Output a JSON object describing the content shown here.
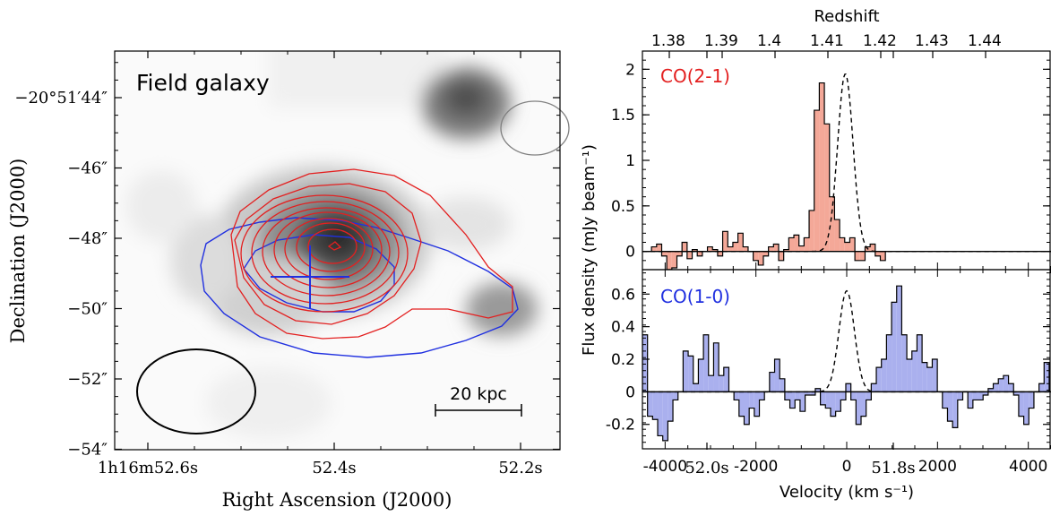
{
  "chart_data": [
    {
      "type": "image",
      "panel_title": "Field galaxy",
      "xlabel": "Right Ascension (J2000)",
      "ylabel": "Declination (J2000)",
      "x_ticks": [
        {
          "sec": 52.6,
          "label": "1h16m52.6s"
        },
        {
          "sec": 52.4,
          "label": "52.4s"
        },
        {
          "sec": 52.2,
          "label": "52.2s"
        },
        {
          "sec": 52.0,
          "label": "52.0s"
        },
        {
          "sec": 51.8,
          "label": "51.8s"
        }
      ],
      "y_ticks": [
        {
          "arcsec": 44,
          "label": "−20°51′44″"
        },
        {
          "arcsec": 46,
          "label": "−46″"
        },
        {
          "arcsec": 48,
          "label": "−48″"
        },
        {
          "arcsec": 50,
          "label": "−50″"
        },
        {
          "arcsec": 52,
          "label": "−52″"
        },
        {
          "arcsec": 54,
          "label": "−54″"
        }
      ],
      "scale_bar_label": "20 kpc",
      "contour_colors": {
        "co21": "#e32020",
        "co10": "#2030e0",
        "beam_small": "#808080",
        "beam_large": "#000000"
      }
    },
    {
      "type": "bar",
      "subtype": "step-histogram",
      "xlabel": "Velocity (km s⁻¹)",
      "ylabel": "Flux density (mJy beam⁻¹)",
      "top_axis_label": "Redshift",
      "top_ticks": [
        "1.38",
        "1.39",
        "1.4",
        "1.41",
        "1.42",
        "1.43",
        "1.44"
      ],
      "xlim": [
        -4500,
        4500
      ],
      "x_ticks": [
        -4000,
        -2000,
        0,
        2000,
        4000
      ],
      "panels": [
        {
          "name": "CO(2-1)",
          "color": "#f4a898",
          "label_color": "#e32020",
          "ylim": [
            -0.2,
            2.2
          ],
          "y_ticks": [
            0,
            0.5,
            1,
            1.5,
            2
          ],
          "y_tick_labels": [
            "0",
            "0.5",
            "1",
            "1.5",
            "2"
          ],
          "bin_width": 112,
          "x_start": -4300,
          "values": [
            0.05,
            0.08,
            -0.05,
            -0.2,
            -0.18,
            -0.05,
            0.1,
            -0.08,
            0.02,
            -0.05,
            0.0,
            0.05,
            0.02,
            -0.05,
            0.22,
            0.05,
            0.1,
            0.2,
            0.05,
            0.0,
            -0.1,
            -0.15,
            -0.05,
            0.05,
            0.08,
            -0.1,
            0.02,
            0.15,
            0.18,
            0.06,
            0.15,
            0.45,
            1.55,
            1.85,
            1.4,
            0.6,
            0.35,
            0.15,
            0.1,
            0.15,
            -0.1,
            -0.1,
            0.05,
            0.08,
            -0.05,
            -0.1
          ],
          "fit": {
            "amp": 1.95,
            "center": -30,
            "sigma": 170
          }
        },
        {
          "name": "CO(1-0)",
          "color": "#aab0ee",
          "label_color": "#2030e0",
          "ylim": [
            -0.35,
            0.75
          ],
          "y_ticks": [
            -0.2,
            0,
            0.2,
            0.4,
            0.6
          ],
          "y_tick_labels": [
            "-0.2",
            "0",
            "0.2",
            "0.4",
            "0.6"
          ],
          "bin_width": 112,
          "x_start": -4500,
          "values": [
            0.35,
            -0.15,
            -0.17,
            -0.27,
            -0.3,
            -0.18,
            -0.05,
            0.0,
            0.25,
            0.22,
            0.05,
            0.2,
            0.35,
            0.1,
            0.3,
            0.1,
            0.15,
            0.0,
            -0.05,
            -0.15,
            -0.2,
            -0.1,
            -0.15,
            -0.05,
            0.0,
            0.12,
            0.2,
            0.08,
            -0.05,
            -0.1,
            -0.05,
            -0.12,
            -0.02,
            -0.02,
            0.02,
            -0.08,
            -0.1,
            -0.15,
            -0.12,
            -0.05,
            0.05,
            -0.05,
            -0.2,
            -0.15,
            -0.05,
            0.05,
            0.15,
            0.2,
            0.35,
            0.55,
            0.65,
            0.35,
            0.2,
            0.25,
            0.35,
            0.18,
            0.15,
            0.2,
            0.0,
            -0.1,
            -0.18,
            -0.22,
            -0.05,
            0.0,
            -0.1,
            -0.05,
            -0.05,
            -0.02,
            0.02,
            0.05,
            0.08,
            0.1,
            0.05,
            -0.02,
            -0.15,
            -0.2,
            -0.1,
            0.0,
            0.05,
            0.18
          ],
          "fit": {
            "amp": 0.62,
            "center": 0,
            "sigma": 170
          }
        }
      ]
    }
  ]
}
